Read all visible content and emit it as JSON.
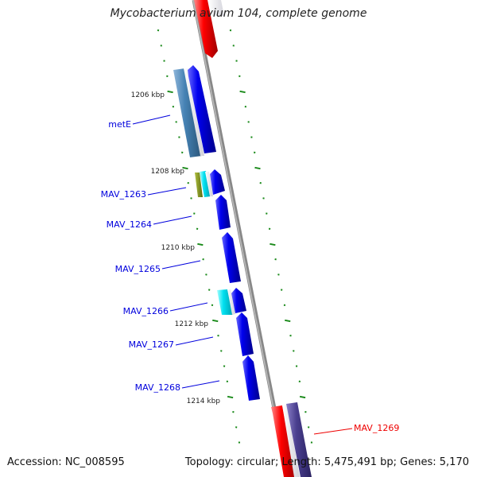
{
  "title": "Mycobacterium avium 104, complete genome",
  "footer": {
    "accession": "Accession: NC_008595",
    "topology": "Topology: circular; Length: 5,475,491 bp; Genes: 5,170"
  },
  "colors": {
    "gene_plus": "#0000ee",
    "gene_minus": "#ff0000",
    "feature_steelblue": "#4682b4",
    "feature_cyan": "#00d8e8",
    "feature_olive": "#7a8a2a",
    "feature_slate": "#4a3f8f",
    "tick": "#1a8a1a",
    "label_blue": "#0000dd",
    "label_red": "#ee0000",
    "backbone": "#888888"
  },
  "scale_labels": [
    "1206 kbp",
    "1208 kbp",
    "1210 kbp",
    "1212 kbp",
    "1214 kbp"
  ],
  "genes": [
    {
      "label": "metE",
      "label_color": "blue",
      "strand": "plus"
    },
    {
      "label": "MAV_1263",
      "label_color": "blue",
      "strand": "plus"
    },
    {
      "label": "MAV_1264",
      "label_color": "blue",
      "strand": "plus"
    },
    {
      "label": "MAV_1265",
      "label_color": "blue",
      "strand": "plus"
    },
    {
      "label": "MAV_1266",
      "label_color": "blue",
      "strand": "plus"
    },
    {
      "label": "MAV_1267",
      "label_color": "blue",
      "strand": "plus"
    },
    {
      "label": "MAV_1268",
      "label_color": "blue",
      "strand": "plus"
    },
    {
      "label": "MAV_1269",
      "label_color": "red",
      "strand": "minus"
    }
  ]
}
